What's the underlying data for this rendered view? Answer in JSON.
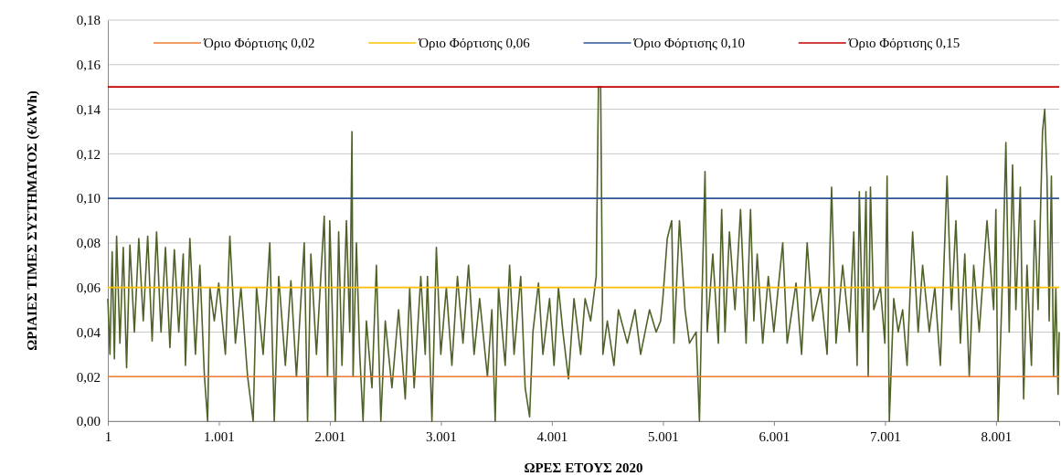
{
  "chart_data": {
    "type": "line",
    "xlabel": "ΩΡΕΣ ΕΤΟΥΣ 2020",
    "ylabel": "ΩΡΙΑΙΕΣ ΤΙΜΕΣ ΣΥΣΤΗΜΑΤΟΣ (€/kWh)",
    "xlim": [
      1,
      8570
    ],
    "xticks": [
      {
        "value": 1,
        "label": "1"
      },
      {
        "value": 1001,
        "label": "1.001"
      },
      {
        "value": 2001,
        "label": "2.001"
      },
      {
        "value": 3001,
        "label": "3.001"
      },
      {
        "value": 4001,
        "label": "4.001"
      },
      {
        "value": 5001,
        "label": "5.001"
      },
      {
        "value": 6001,
        "label": "6.001"
      },
      {
        "value": 7001,
        "label": "7.001"
      },
      {
        "value": 8001,
        "label": "8.001"
      }
    ],
    "ylim": [
      0,
      0.18
    ],
    "yticks": [
      {
        "value": 0,
        "label": "0,00"
      },
      {
        "value": 0.02,
        "label": "0,02"
      },
      {
        "value": 0.04,
        "label": "0,04"
      },
      {
        "value": 0.06,
        "label": "0,06"
      },
      {
        "value": 0.08,
        "label": "0,08"
      },
      {
        "value": 0.1,
        "label": "0,10"
      },
      {
        "value": 0.12,
        "label": "0,12"
      },
      {
        "value": 0.14,
        "label": "0,14"
      },
      {
        "value": 0.16,
        "label": "0,16"
      },
      {
        "value": 0.18,
        "label": "0,18"
      }
    ],
    "grid": "y",
    "legend": "top",
    "series": [
      {
        "color": "#4f6228",
        "x": [
          1,
          20,
          40,
          60,
          80,
          110,
          140,
          170,
          200,
          240,
          280,
          320,
          360,
          400,
          440,
          480,
          520,
          560,
          600,
          640,
          680,
          700,
          740,
          790,
          830,
          870,
          900,
          920,
          960,
          1000,
          1060,
          1100,
          1150,
          1200,
          1260,
          1310,
          1340,
          1400,
          1460,
          1500,
          1540,
          1600,
          1650,
          1700,
          1770,
          1800,
          1830,
          1880,
          1950,
          1980,
          2000,
          2050,
          2080,
          2110,
          2150,
          2180,
          2200,
          2210,
          2240,
          2270,
          2300,
          2330,
          2380,
          2420,
          2460,
          2500,
          2560,
          2620,
          2680,
          2720,
          2760,
          2820,
          2860,
          2880,
          2920,
          2960,
          3000,
          3050,
          3100,
          3150,
          3200,
          3250,
          3300,
          3350,
          3420,
          3460,
          3490,
          3520,
          3580,
          3620,
          3660,
          3720,
          3760,
          3800,
          3830,
          3880,
          3920,
          3980,
          4020,
          4060,
          4100,
          4150,
          4200,
          4260,
          4300,
          4350,
          4400,
          4420,
          4440,
          4460,
          4500,
          4560,
          4600,
          4680,
          4750,
          4800,
          4880,
          4940,
          4980,
          5000,
          5040,
          5080,
          5100,
          5150,
          5200,
          5240,
          5300,
          5330,
          5350,
          5380,
          5400,
          5450,
          5500,
          5530,
          5560,
          5600,
          5650,
          5700,
          5750,
          5790,
          5820,
          5850,
          5900,
          5950,
          6000,
          6080,
          6120,
          6200,
          6250,
          6300,
          6350,
          6420,
          6480,
          6520,
          6560,
          6620,
          6680,
          6720,
          6750,
          6770,
          6800,
          6830,
          6850,
          6870,
          6900,
          6960,
          7000,
          7020,
          7040,
          7080,
          7120,
          7160,
          7200,
          7250,
          7300,
          7340,
          7400,
          7450,
          7500,
          7560,
          7600,
          7640,
          7680,
          7720,
          7760,
          7800,
          7850,
          7920,
          7980,
          8000,
          8020,
          8060,
          8090,
          8120,
          8150,
          8180,
          8220,
          8250,
          8280,
          8320,
          8350,
          8380,
          8420,
          8440,
          8460,
          8480,
          8500,
          8520,
          8540,
          8560,
          8570
        ],
        "values": [
          0.055,
          0.03,
          0.076,
          0.028,
          0.083,
          0.035,
          0.078,
          0.024,
          0.079,
          0.04,
          0.082,
          0.045,
          0.083,
          0.036,
          0.085,
          0.04,
          0.078,
          0.033,
          0.077,
          0.04,
          0.075,
          0.025,
          0.082,
          0.03,
          0.07,
          0.021,
          0.0,
          0.06,
          0.045,
          0.062,
          0.03,
          0.083,
          0.035,
          0.06,
          0.02,
          0.0,
          0.06,
          0.03,
          0.08,
          0.0,
          0.065,
          0.025,
          0.063,
          0.02,
          0.08,
          0.0,
          0.075,
          0.03,
          0.092,
          0.02,
          0.09,
          0.0,
          0.085,
          0.025,
          0.09,
          0.04,
          0.13,
          0.02,
          0.08,
          0.03,
          0.0,
          0.045,
          0.015,
          0.07,
          0.0,
          0.045,
          0.015,
          0.05,
          0.01,
          0.06,
          0.015,
          0.065,
          0.03,
          0.065,
          0.0,
          0.078,
          0.03,
          0.06,
          0.025,
          0.065,
          0.035,
          0.07,
          0.03,
          0.055,
          0.02,
          0.05,
          0.0,
          0.06,
          0.025,
          0.07,
          0.03,
          0.065,
          0.015,
          0.002,
          0.04,
          0.062,
          0.03,
          0.055,
          0.025,
          0.06,
          0.04,
          0.019,
          0.055,
          0.03,
          0.055,
          0.045,
          0.065,
          0.15,
          0.15,
          0.03,
          0.045,
          0.025,
          0.05,
          0.035,
          0.05,
          0.03,
          0.05,
          0.04,
          0.045,
          0.055,
          0.082,
          0.09,
          0.035,
          0.09,
          0.05,
          0.035,
          0.04,
          0.0,
          0.05,
          0.112,
          0.04,
          0.075,
          0.035,
          0.095,
          0.04,
          0.085,
          0.05,
          0.095,
          0.035,
          0.095,
          0.045,
          0.075,
          0.035,
          0.065,
          0.04,
          0.08,
          0.035,
          0.062,
          0.03,
          0.08,
          0.045,
          0.06,
          0.03,
          0.105,
          0.035,
          0.07,
          0.04,
          0.085,
          0.025,
          0.103,
          0.04,
          0.103,
          0.02,
          0.105,
          0.05,
          0.06,
          0.035,
          0.11,
          0.0,
          0.055,
          0.04,
          0.05,
          0.025,
          0.085,
          0.04,
          0.07,
          0.04,
          0.06,
          0.025,
          0.11,
          0.05,
          0.09,
          0.035,
          0.075,
          0.02,
          0.07,
          0.04,
          0.09,
          0.05,
          0.095,
          0.0,
          0.065,
          0.125,
          0.04,
          0.115,
          0.05,
          0.105,
          0.01,
          0.07,
          0.025,
          0.09,
          0.05,
          0.13,
          0.14,
          0.11,
          0.045,
          0.11,
          0.02,
          0.06,
          0.012,
          0.04
        ]
      },
      {
        "name": "Όριο Φόρτισης 0,02",
        "color": "#ed7d31",
        "x": [
          1,
          8570
        ],
        "values": [
          0.02,
          0.02
        ]
      },
      {
        "name": "Όριο Φόρτισης 0,06",
        "color": "#ffc000",
        "x": [
          1,
          8570
        ],
        "values": [
          0.06,
          0.06
        ]
      },
      {
        "name": "Όριο Φόρτισης 0,10",
        "color": "#2f5597",
        "x": [
          1,
          8570
        ],
        "values": [
          0.1,
          0.1
        ]
      },
      {
        "name": "Όριο Φόρτισης 0,15",
        "color": "#c00000",
        "x": [
          1,
          8570
        ],
        "values": [
          0.15,
          0.15
        ]
      }
    ]
  }
}
